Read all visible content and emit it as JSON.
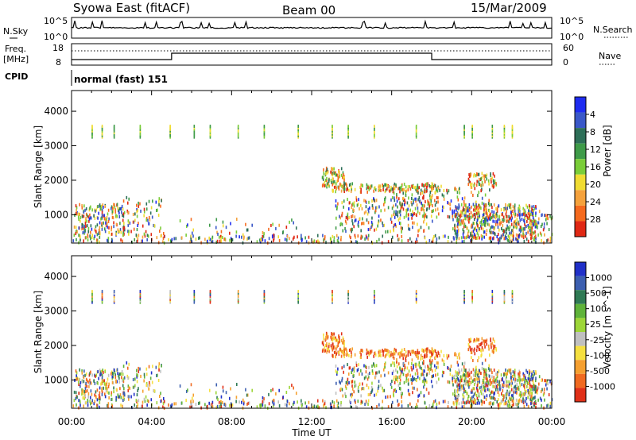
{
  "header": {
    "station": "Syowa East (fitACF)",
    "beam": "Beam 00",
    "date": "15/Mar/2009"
  },
  "panels": {
    "nsky_label": "N.Sky",
    "nsky_tick_top": "10^5",
    "nsky_tick_bottom": "10^0",
    "nsearch_label": "N.Search",
    "nsearch_tick_top": "10^5",
    "nsearch_tick_bottom": "10^0",
    "freq_label_1": "Freq.",
    "freq_label_2": "[MHz]",
    "freq_tick_top": "18",
    "freq_tick_bottom": "8",
    "nave_label": "Nave",
    "nave_tick_top": "60",
    "nave_tick_bottom": "0",
    "cpid_label": "CPID",
    "cpid_text": "normal (fast) 151"
  },
  "chart_data": [
    {
      "type": "heatmap",
      "panel": "power",
      "ylabel": "Slant Range [km]",
      "ylim": [
        180,
        4600
      ],
      "yticks": [
        "1000",
        "2000",
        "3000",
        "4000"
      ],
      "colorbar": {
        "label": "Power [dB]",
        "ticks": [
          "4",
          "8",
          "12",
          "16",
          "20",
          "24",
          "28"
        ],
        "colors": [
          "#1e2cf0",
          "#3a58c8",
          "#2e6f58",
          "#3f9b49",
          "#7acd38",
          "#f0dc32",
          "#f5a23c",
          "#f56a1e",
          "#e02814"
        ]
      }
    },
    {
      "type": "heatmap",
      "panel": "velocity",
      "ylabel": "Slant Range [km]",
      "ylim": [
        180,
        4600
      ],
      "yticks": [
        "1000",
        "2000",
        "3000",
        "4000"
      ],
      "colorbar": {
        "label": "Velocity [m s^-1]",
        "ticks": [
          "1000",
          "500",
          "100",
          "25",
          "-25",
          "-100",
          "-500",
          "-1000"
        ],
        "colors": [
          "#2030c8",
          "#3c5fb0",
          "#2f7a55",
          "#5fb33a",
          "#9dd638",
          "#c0c0c0",
          "#f5e040",
          "#f5a030",
          "#f06a20",
          "#e03018"
        ]
      }
    }
  ],
  "xaxis": {
    "label": "Time UT",
    "ticks": [
      "00:00",
      "04:00",
      "08:00",
      "12:00",
      "16:00",
      "20:00",
      "00:00"
    ]
  }
}
